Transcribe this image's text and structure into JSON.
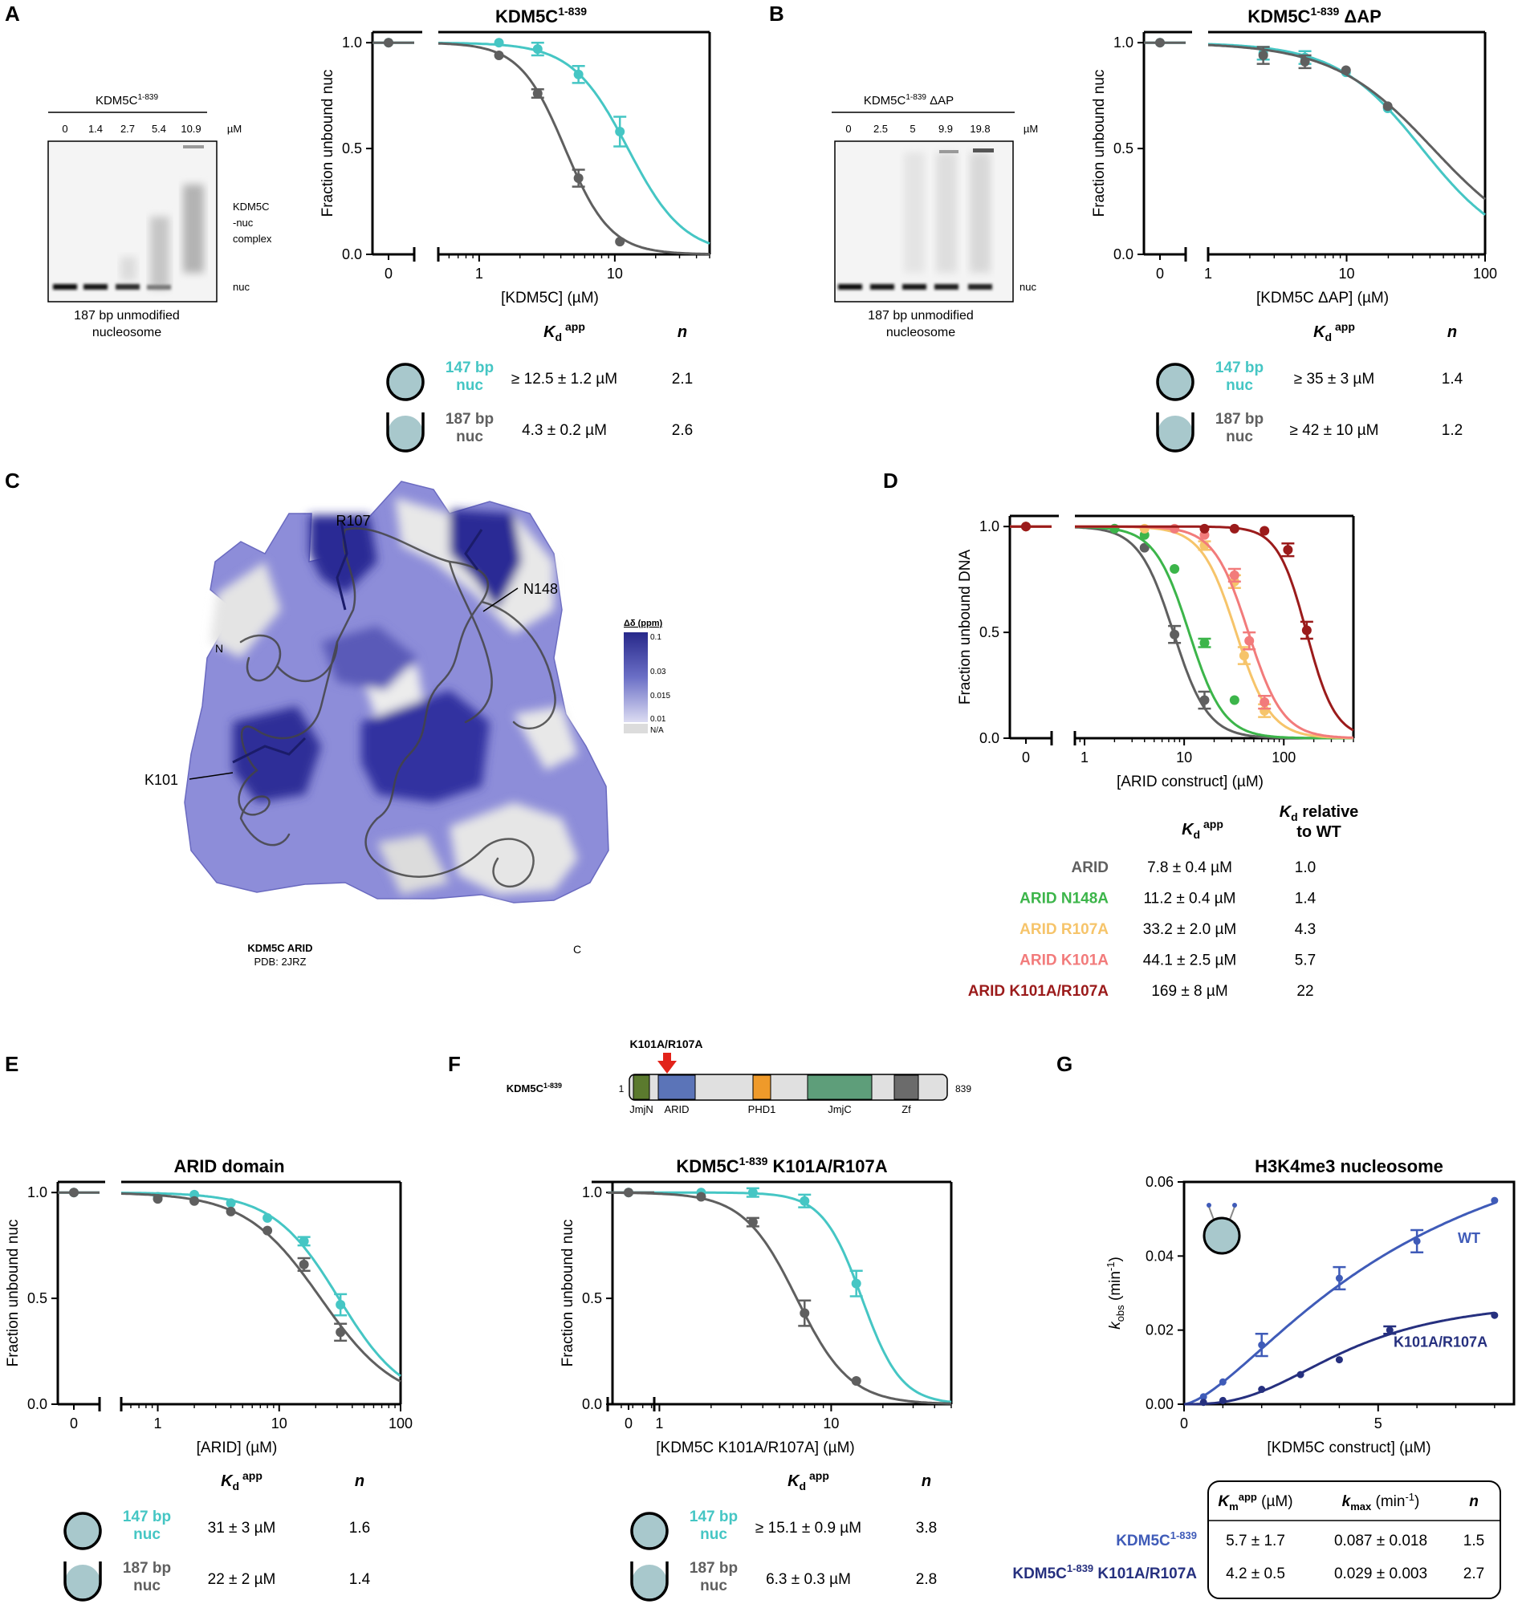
{
  "colors": {
    "teal": "#45c6c4",
    "gray": "#5f5f5f",
    "green": "#3cb54a",
    "yellow": "#f6c46a",
    "salmon": "#f27b7b",
    "darkred": "#9b1b1b",
    "blue_wt": "#3f5bb8",
    "navy": "#26307f",
    "nuc_fill": "#a8c8cc",
    "arrow": "#e2231a"
  },
  "panel_letters": [
    "A",
    "B",
    "C",
    "D",
    "E",
    "F",
    "G"
  ],
  "gel_a": {
    "header": "KDM5C",
    "header_sup": "1-839",
    "lanes": [
      "0",
      "1.4",
      "2.7",
      "5.4",
      "10.9"
    ],
    "unit": "µM",
    "label_complex": [
      "KDM5C",
      "-nuc",
      "complex"
    ],
    "label_nuc": "nuc",
    "caption": [
      "187 bp unmodified",
      "nucleosome"
    ]
  },
  "gel_b": {
    "header": "KDM5C",
    "header_sup": "1-839",
    "header_suffix": " ΔAP",
    "lanes": [
      "0",
      "2.5",
      "5",
      "9.9",
      "19.8"
    ],
    "unit": "µM",
    "label_nuc": "nuc",
    "caption": [
      "187 bp unmodified",
      "nucleosome"
    ]
  },
  "tables": {
    "A": {
      "col_kd": "K",
      "col_kd_sub": "d",
      "col_kd_sup": "app",
      "col_n": "n",
      "rows": [
        {
          "name": [
            "147 bp",
            "nuc"
          ],
          "kd": "≥ 12.5 ± 1.2 µM",
          "n": "2.1",
          "color": "teal",
          "icon": "147"
        },
        {
          "name": [
            "187 bp",
            "nuc"
          ],
          "kd": "4.3 ± 0.2 µM",
          "n": "2.6",
          "color": "gray",
          "icon": "187"
        }
      ]
    },
    "B": {
      "col_kd": "K",
      "col_kd_sub": "d",
      "col_kd_sup": "app",
      "col_n": "n",
      "rows": [
        {
          "name": [
            "147 bp",
            "nuc"
          ],
          "kd": "≥ 35 ± 3 µM",
          "n": "1.4",
          "color": "teal",
          "icon": "147"
        },
        {
          "name": [
            "187 bp",
            "nuc"
          ],
          "kd": "≥ 42 ± 10 µM",
          "n": "1.2",
          "color": "gray",
          "icon": "187"
        }
      ]
    },
    "D": {
      "col_kd": "K",
      "col_kd_sub": "d",
      "col_kd_sup": "app",
      "col_rel": [
        "relative",
        "to WT"
      ],
      "col_rel_k": "K",
      "col_rel_sub": "d",
      "rows": [
        {
          "name": "ARID",
          "kd": "7.8 ± 0.4 µM",
          "rel": "1.0",
          "color": "gray"
        },
        {
          "name": "ARID N148A",
          "kd": "11.2 ± 0.4 µM",
          "rel": "1.4",
          "color": "green"
        },
        {
          "name": "ARID R107A",
          "kd": "33.2 ± 2.0 µM",
          "rel": "4.3",
          "color": "yellow"
        },
        {
          "name": "ARID K101A",
          "kd": "44.1 ± 2.5 µM",
          "rel": "5.7",
          "color": "salmon"
        },
        {
          "name": "ARID K101A/R107A",
          "kd": "169 ± 8 µM",
          "rel": "22",
          "color": "darkred"
        }
      ]
    },
    "E": {
      "col_kd": "K",
      "col_kd_sub": "d",
      "col_kd_sup": "app",
      "col_n": "n",
      "rows": [
        {
          "name": [
            "147 bp",
            "nuc"
          ],
          "kd": "31 ± 3 µM",
          "n": "1.6",
          "color": "teal",
          "icon": "147"
        },
        {
          "name": [
            "187 bp",
            "nuc"
          ],
          "kd": "22 ± 2 µM",
          "n": "1.4",
          "color": "gray",
          "icon": "187"
        }
      ]
    },
    "F": {
      "col_kd": "K",
      "col_kd_sub": "d",
      "col_kd_sup": "app",
      "col_n": "n",
      "rows": [
        {
          "name": [
            "147 bp",
            "nuc"
          ],
          "kd": "≥ 15.1 ± 0.9 µM",
          "n": "3.8",
          "color": "teal",
          "icon": "147"
        },
        {
          "name": [
            "187 bp",
            "nuc"
          ],
          "kd": "6.3 ± 0.3 µM",
          "n": "2.8",
          "color": "gray",
          "icon": "187"
        }
      ]
    },
    "G": {
      "col_km": "K",
      "col_km_sub": "m",
      "col_km_sup": "app",
      "col_km_unit": " (µM)",
      "col_kmax": "k",
      "col_kmax_sub": "max",
      "col_kmax_unit": " (min",
      "col_kmax_sup": "-1",
      "col_kmax_close": ")",
      "col_n": "n",
      "rows": [
        {
          "name": "KDM5C",
          "name_sup": "1-839",
          "name_suffix": "",
          "km": "5.7 ± 1.7",
          "kmax": "0.087 ± 0.018",
          "n": "1.5",
          "color": "blue_wt"
        },
        {
          "name": "KDM5C",
          "name_sup": "1-839",
          "name_suffix": " K101A/R107A",
          "km": "4.2 ± 0.5",
          "kmax": "0.029 ± 0.003",
          "n": "2.7",
          "color": "navy"
        }
      ]
    }
  },
  "structure": {
    "title": "KDM5C ARID",
    "pdb": "PDB: 2JRZ",
    "labels": [
      "R107",
      "N148",
      "N",
      "K101",
      "C"
    ],
    "scale_title": "Δδ (ppm)",
    "scale_ticks": [
      "0.1",
      "0.03",
      "0.015",
      "0.01",
      "N/A"
    ]
  },
  "domain_map": {
    "mutation": "K101A/R107A",
    "protein": "KDM5C",
    "protein_sup": "1-839",
    "start": "1",
    "end": "839",
    "domains": [
      {
        "name": "JmjN",
        "color": "#5b7a2e"
      },
      {
        "name": "ARID",
        "color": "#5b74b8"
      },
      {
        "name": "PHD1",
        "color": "#ef9a2a"
      },
      {
        "name": "JmjC",
        "color": "#5e9e7a"
      },
      {
        "name": "Zf",
        "color": "#6b6b6b"
      }
    ]
  },
  "chart_data": [
    {
      "id": "A",
      "type": "line",
      "title": "KDM5C",
      "title_sup": "1-839",
      "title_suffix": "",
      "xlabel": "[KDM5C] (µM)",
      "ylabel": "Fraction unbound nuc",
      "xscale": "log",
      "xlim": [
        0.5,
        50
      ],
      "ylim": [
        0,
        1.05
      ],
      "yticks": [
        "0.0",
        "0.5",
        "1.0"
      ],
      "xticks": [
        "1",
        "10"
      ],
      "zero_tick": "0",
      "series": [
        {
          "color": "teal",
          "kd": 12.5,
          "n": 2.1,
          "x": [
            0,
            1.4,
            2.7,
            5.4,
            10.9
          ],
          "y": [
            1.0,
            1.0,
            0.97,
            0.85,
            0.58
          ],
          "err": [
            0,
            0,
            0.03,
            0.04,
            0.07
          ]
        },
        {
          "color": "gray",
          "kd": 4.3,
          "n": 2.6,
          "x": [
            0,
            1.4,
            2.7,
            5.4,
            10.9
          ],
          "y": [
            1.0,
            0.94,
            0.76,
            0.36,
            0.06
          ],
          "err": [
            0,
            0,
            0.02,
            0.04,
            0
          ]
        }
      ]
    },
    {
      "id": "B",
      "type": "line",
      "title": "KDM5C",
      "title_sup": "1-839",
      "title_suffix": " ΔAP",
      "xlabel": "[KDM5C ΔAP] (µM)",
      "ylabel": "Fraction unbound nuc",
      "xscale": "log",
      "xlim": [
        1,
        100
      ],
      "ylim": [
        0,
        1.05
      ],
      "yticks": [
        "0.0",
        "0.5",
        "1.0"
      ],
      "xticks": [
        "1",
        "10",
        "100"
      ],
      "zero_tick": "0",
      "series": [
        {
          "color": "teal",
          "kd": 35,
          "n": 1.4,
          "x": [
            0,
            2.5,
            5,
            9.9,
            19.8
          ],
          "y": [
            1.0,
            0.95,
            0.93,
            0.86,
            0.69
          ],
          "err": [
            0,
            0.03,
            0.03,
            0,
            0
          ]
        },
        {
          "color": "gray",
          "kd": 42,
          "n": 1.2,
          "x": [
            0,
            2.5,
            5,
            9.9,
            19.8
          ],
          "y": [
            1.0,
            0.94,
            0.91,
            0.87,
            0.7
          ],
          "err": [
            0,
            0.04,
            0.03,
            0,
            0
          ]
        }
      ]
    },
    {
      "id": "D",
      "type": "line",
      "title": "",
      "title_sup": "",
      "title_suffix": "",
      "xlabel": "[ARID construct] (µM)",
      "ylabel": "Fraction unbound DNA",
      "xscale": "log",
      "xlim": [
        0.8,
        500
      ],
      "ylim": [
        0,
        1.05
      ],
      "yticks": [
        "0.0",
        "0.5",
        "1.0"
      ],
      "xticks": [
        "1",
        "10",
        "100"
      ],
      "zero_tick": "0",
      "series": [
        {
          "color": "gray",
          "kd": 7.8,
          "n": 2.5,
          "x": [
            0,
            2,
            4,
            8,
            16
          ],
          "y": [
            1.0,
            0.99,
            0.9,
            0.49,
            0.18
          ],
          "err": [
            0,
            0,
            0,
            0.04,
            0.04
          ]
        },
        {
          "color": "green",
          "kd": 11.2,
          "n": 2.5,
          "x": [
            0,
            2,
            4,
            8,
            16,
            32
          ],
          "y": [
            1.0,
            0.99,
            0.96,
            0.8,
            0.45,
            0.18
          ],
          "err": [
            0,
            0,
            0,
            0,
            0.02,
            0
          ]
        },
        {
          "color": "yellow",
          "kd": 33.2,
          "n": 2.5,
          "x": [
            0,
            4,
            16,
            32,
            40,
            64
          ],
          "y": [
            1.0,
            0.99,
            0.91,
            0.74,
            0.39,
            0.13
          ],
          "err": [
            0,
            0,
            0.02,
            0.03,
            0.04,
            0.03
          ]
        },
        {
          "color": "salmon",
          "kd": 44.1,
          "n": 2.5,
          "x": [
            0,
            8,
            16,
            32,
            45,
            64
          ],
          "y": [
            1.0,
            0.99,
            0.96,
            0.77,
            0.46,
            0.17
          ],
          "err": [
            0,
            0,
            0,
            0.03,
            0.04,
            0.03
          ]
        },
        {
          "color": "darkred",
          "kd": 169,
          "n": 3,
          "x": [
            0,
            16,
            32,
            64,
            110,
            170
          ],
          "y": [
            1.0,
            0.99,
            0.99,
            0.98,
            0.89,
            0.51
          ],
          "err": [
            0,
            0,
            0,
            0,
            0.03,
            0.04
          ]
        }
      ]
    },
    {
      "id": "E",
      "type": "line",
      "title": "ARID domain",
      "title_sup": "",
      "title_suffix": "",
      "xlabel": "[ARID] (µM)",
      "ylabel": "Fraction unbound nuc",
      "xscale": "log",
      "xlim": [
        0.5,
        100
      ],
      "ylim": [
        0,
        1.05
      ],
      "yticks": [
        "0.0",
        "0.5",
        "1.0"
      ],
      "xticks": [
        "1",
        "10",
        "100"
      ],
      "zero_tick": "0",
      "series": [
        {
          "color": "teal",
          "kd": 31,
          "n": 1.6,
          "x": [
            0,
            1,
            2,
            4,
            8,
            16,
            32
          ],
          "y": [
            1.0,
            0.98,
            0.99,
            0.95,
            0.88,
            0.77,
            0.47
          ],
          "err": [
            0,
            0,
            0,
            0,
            0,
            0.02,
            0.05
          ]
        },
        {
          "color": "gray",
          "kd": 22,
          "n": 1.4,
          "x": [
            0,
            1,
            2,
            4,
            8,
            16,
            32
          ],
          "y": [
            1.0,
            0.97,
            0.96,
            0.91,
            0.82,
            0.66,
            0.34
          ],
          "err": [
            0,
            0,
            0,
            0,
            0,
            0.03,
            0.04
          ]
        }
      ]
    },
    {
      "id": "F",
      "type": "line",
      "title": "KDM5C",
      "title_sup": "1-839",
      "title_suffix": " K101A/R107A",
      "xlabel": "[KDM5C K101A/R107A] (µM)",
      "ylabel": "Fraction unbound nuc",
      "xscale": "log",
      "xlim": [
        0.5,
        50
      ],
      "ylim": [
        0,
        1.05
      ],
      "yticks": [
        "0.0",
        "0.5",
        "1.0"
      ],
      "xticks": [
        "1",
        "10"
      ],
      "zero_tick": "0",
      "series": [
        {
          "color": "teal",
          "kd": 15.1,
          "n": 3.8,
          "x": [
            0,
            1.75,
            3.5,
            7,
            14
          ],
          "y": [
            1.0,
            1.0,
            1.0,
            0.96,
            0.57
          ],
          "err": [
            0,
            0,
            0.02,
            0.03,
            0.06
          ]
        },
        {
          "color": "gray",
          "kd": 6.3,
          "n": 2.8,
          "x": [
            0,
            1.75,
            3.5,
            7,
            14
          ],
          "y": [
            1.0,
            0.98,
            0.86,
            0.43,
            0.11
          ],
          "err": [
            0,
            0,
            0.02,
            0.06,
            0
          ]
        }
      ]
    },
    {
      "id": "G",
      "type": "line",
      "title": "H3K4me3 nucleosome",
      "title_sup": "",
      "title_suffix": "",
      "xlabel": "[KDM5C construct] (µM)",
      "ylabel": "k",
      "ylabel_sub": "obs",
      "ylabel_unit": " (min",
      "ylabel_sup": "-1",
      "ylabel_close": ")",
      "xscale": "linear",
      "xlim": [
        0,
        8.5
      ],
      "ylim": [
        0,
        0.06
      ],
      "yticks": [
        "0.00",
        "0.02",
        "0.04",
        "0.06"
      ],
      "xticks": [
        "0",
        "5"
      ],
      "series": [
        {
          "name": "WT",
          "color": "blue_wt",
          "km": 5.7,
          "kmax": 0.087,
          "n": 1.5,
          "x": [
            0.5,
            1,
            2,
            4,
            6,
            8
          ],
          "y": [
            0.002,
            0.006,
            0.016,
            0.034,
            0.044,
            0.055
          ],
          "err": [
            0,
            0,
            0.003,
            0.003,
            0.003,
            0
          ]
        },
        {
          "name": "K101A/R107A",
          "color": "navy",
          "km": 4.2,
          "kmax": 0.029,
          "n": 2.7,
          "x": [
            0.5,
            1,
            2,
            3,
            4,
            5.3,
            8
          ],
          "y": [
            0.0005,
            0.001,
            0.004,
            0.008,
            0.012,
            0.02,
            0.024
          ],
          "err": [
            0,
            0,
            0,
            0,
            0,
            0.001,
            0
          ]
        }
      ]
    }
  ]
}
